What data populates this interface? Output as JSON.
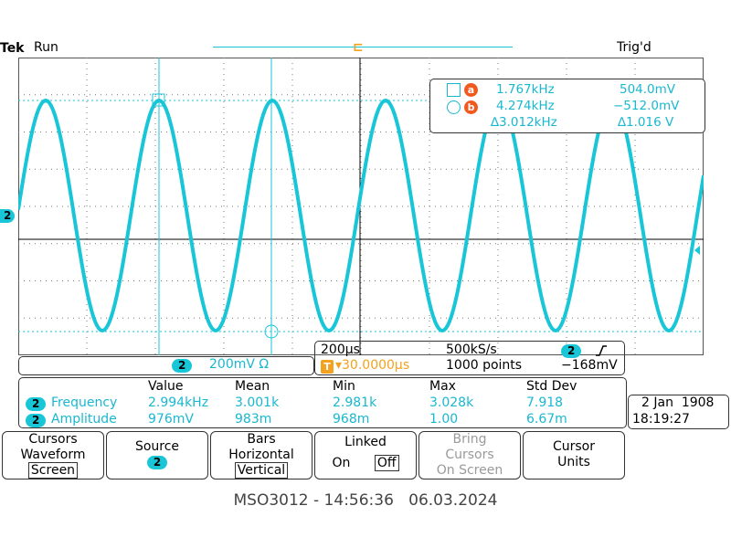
{
  "header": {
    "brand": "Tek",
    "run_state": "Run",
    "trigger_state": "Trig'd"
  },
  "cursor_markers": {
    "a": "a",
    "b": "b",
    "trigger": "T"
  },
  "channel_marker": "2",
  "cursor_readout": {
    "a_freq": "1.767kHz",
    "a_volt": "504.0mV",
    "b_freq": "4.274kHz",
    "b_volt": "−512.0mV",
    "delta_freq": "∆3.012kHz",
    "delta_volt": "∆1.016 V"
  },
  "channel_strip": {
    "channel": "2",
    "scale": "200mV Ω"
  },
  "timebase": {
    "horizontal": "200µs",
    "sample_rate": "500kS/s",
    "trig_channel": "2",
    "slope_icon": "rising-edge-icon",
    "trig_offset": "▾30.0000µs",
    "record_length": "1000 points",
    "trig_level": "−168mV"
  },
  "measurements": {
    "headers": [
      "Value",
      "Mean",
      "Min",
      "Max",
      "Std Dev"
    ],
    "rows": [
      {
        "channel": "2",
        "name": "Frequency",
        "value": "2.994kHz",
        "mean": "3.001k",
        "min": "2.981k",
        "max": "3.028k",
        "std": "7.918"
      },
      {
        "channel": "2",
        "name": "Amplitude",
        "value": "976mV",
        "mean": "983m",
        "min": "968m",
        "max": "1.00",
        "std": "6.67m"
      }
    ]
  },
  "datetime": {
    "date": "2 Jan  1908",
    "time": "18:19:27"
  },
  "menu": {
    "cursors": {
      "l1": "Cursors",
      "l2": "Waveform",
      "l3": "Screen"
    },
    "source": {
      "l1": "Source",
      "l2": "2"
    },
    "bars": {
      "l1": "Bars",
      "l2": "Horizontal",
      "l3": "Vertical"
    },
    "linked": {
      "l1": "Linked",
      "on": "On",
      "off": "Off"
    },
    "bring": {
      "l1": "Bring",
      "l2": "Cursors",
      "l3": "On Screen"
    },
    "units": {
      "l1": "Cursor",
      "l2": "Units"
    }
  },
  "footer": "MSO3012 - 14:56:36   06.03.2024",
  "colors": {
    "trace": "#19c6d8",
    "cursor_badge": "#f05a1e",
    "trigger_badge": "#f2a21e",
    "grid": "#555555"
  }
}
